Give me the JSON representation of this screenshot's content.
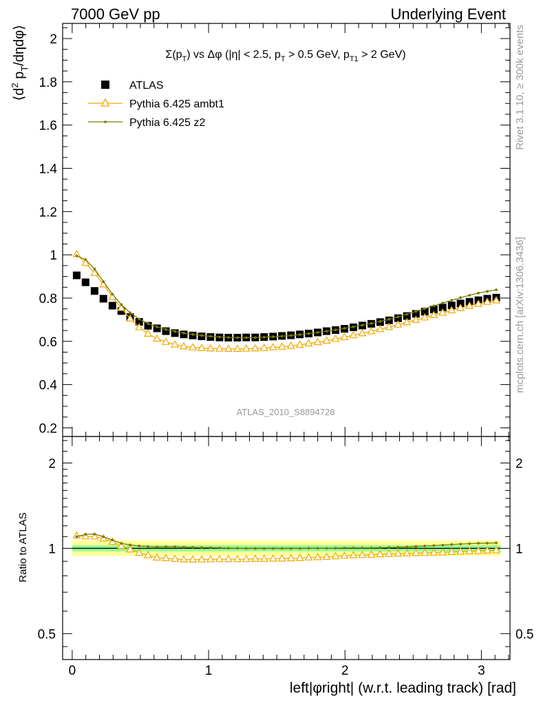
{
  "header": {
    "left": "7000 GeV pp",
    "right": "Underlying Event"
  },
  "side_labels": {
    "rivet": "Rivet 3.1.10, ≥ 300k events",
    "mcplots": "mcplots.cern.ch [arXiv:1306.3436]"
  },
  "watermark": "ATLAS_2010_S8894728",
  "colors": {
    "atlas": "#000000",
    "ambt1": "#f0a800",
    "z2": "#7a7a00",
    "band_inner": "#99ff99",
    "band_outer": "#ffff99",
    "ref_line": "#33aa66"
  },
  "chart_data": [
    {
      "type": "scatter",
      "panel": "main",
      "title": "Σ(p_T) vs Δφ (|η| < 2.5, p_T > 0.5 GeV, p_T1 > 2 GeV)",
      "ylabel": "⟨d² p_T/dηdφ⟩",
      "xlim": [
        -0.07,
        3.21
      ],
      "ylim": [
        0.16,
        2.07
      ],
      "yticks": [
        0.2,
        0.4,
        0.6,
        0.8,
        1,
        1.2,
        1.4,
        1.6,
        1.8,
        2
      ],
      "yticklabels": [
        "0.2",
        "0.4",
        "0.6",
        "0.8",
        "1",
        "1.2",
        "1.4",
        "1.6",
        "1.8",
        "2"
      ],
      "legend_position": "top-left",
      "bin_width": 0.0655,
      "x": [
        0.033,
        0.098,
        0.164,
        0.229,
        0.295,
        0.36,
        0.425,
        0.491,
        0.556,
        0.622,
        0.687,
        0.753,
        0.818,
        0.884,
        0.949,
        1.014,
        1.08,
        1.145,
        1.211,
        1.276,
        1.342,
        1.407,
        1.473,
        1.538,
        1.604,
        1.669,
        1.734,
        1.8,
        1.865,
        1.931,
        1.996,
        2.062,
        2.127,
        2.193,
        2.258,
        2.323,
        2.389,
        2.454,
        2.52,
        2.585,
        2.651,
        2.716,
        2.782,
        2.847,
        2.913,
        2.978,
        3.043,
        3.109
      ],
      "series": [
        {
          "name": "ATLAS",
          "marker": "square",
          "values": [
            0.905,
            0.873,
            0.833,
            0.797,
            0.765,
            0.74,
            0.712,
            0.69,
            0.672,
            0.66,
            0.647,
            0.638,
            0.632,
            0.627,
            0.623,
            0.62,
            0.618,
            0.617,
            0.617,
            0.618,
            0.618,
            0.62,
            0.622,
            0.625,
            0.628,
            0.632,
            0.636,
            0.641,
            0.647,
            0.652,
            0.658,
            0.665,
            0.673,
            0.681,
            0.689,
            0.697,
            0.707,
            0.717,
            0.727,
            0.737,
            0.747,
            0.757,
            0.766,
            0.775,
            0.783,
            0.79,
            0.797,
            0.802
          ]
        },
        {
          "name": "Pythia 6.425 ambt1",
          "marker": "triangle",
          "values": [
            1.003,
            0.962,
            0.916,
            0.863,
            0.806,
            0.754,
            0.705,
            0.665,
            0.635,
            0.612,
            0.597,
            0.585,
            0.577,
            0.572,
            0.569,
            0.567,
            0.566,
            0.565,
            0.565,
            0.566,
            0.567,
            0.569,
            0.572,
            0.575,
            0.579,
            0.584,
            0.59,
            0.596,
            0.603,
            0.611,
            0.619,
            0.628,
            0.637,
            0.646,
            0.656,
            0.666,
            0.677,
            0.688,
            0.699,
            0.71,
            0.721,
            0.732,
            0.743,
            0.754,
            0.764,
            0.773,
            0.782,
            0.789
          ]
        },
        {
          "name": "Pythia 6.425 z2",
          "marker": "dot",
          "values": [
            0.995,
            0.978,
            0.935,
            0.876,
            0.818,
            0.77,
            0.732,
            0.703,
            0.682,
            0.667,
            0.655,
            0.646,
            0.638,
            0.632,
            0.627,
            0.623,
            0.62,
            0.618,
            0.617,
            0.617,
            0.617,
            0.619,
            0.621,
            0.624,
            0.627,
            0.631,
            0.636,
            0.641,
            0.647,
            0.653,
            0.66,
            0.667,
            0.675,
            0.683,
            0.692,
            0.702,
            0.713,
            0.725,
            0.738,
            0.751,
            0.764,
            0.777,
            0.79,
            0.802,
            0.813,
            0.823,
            0.831,
            0.838
          ]
        }
      ]
    },
    {
      "type": "scatter",
      "panel": "ratio",
      "ylabel": "Ratio to ATLAS",
      "xlabel": "left|φright| (w.r.t. leading track) [rad]",
      "xlim": [
        -0.07,
        3.21
      ],
      "xticks": [
        0,
        1,
        2,
        3
      ],
      "xticklabels": [
        "0",
        "1",
        "2",
        "3"
      ],
      "yscale": "log",
      "ylim": [
        0.405,
        2.48
      ],
      "yticks": [
        0.5,
        1,
        2
      ],
      "yticklabels": [
        "0.5",
        "1",
        "2"
      ],
      "band": {
        "outer": [
          0.94,
          1.065
        ],
        "inner": [
          0.975,
          1.025
        ]
      },
      "series": [
        {
          "name": "Pythia 6.425 ambt1",
          "marker": "triangle"
        },
        {
          "name": "Pythia 6.425 z2",
          "marker": "dot"
        }
      ]
    }
  ]
}
